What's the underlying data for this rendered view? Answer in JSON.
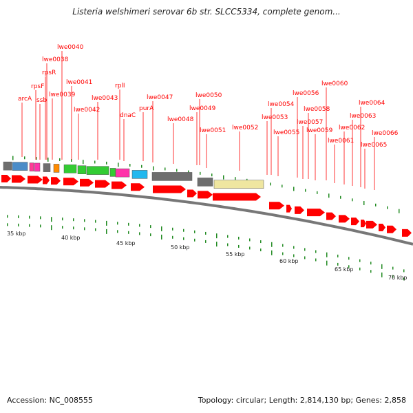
{
  "title": "Listeria welshimeri serovar 6b str. SLCC5334, complete genom...",
  "footer": {
    "accession": "Accession: NC_008555",
    "topology": "Topology: circular; Length: 2,814,130 bp; Genes: 2,858"
  },
  "colors": {
    "cds": "#ff0000",
    "label": "#ff0000",
    "tick": "#228b22",
    "gray": "#6e6e6e",
    "light_blue": "#4a8cc8",
    "pink": "#ff3c96",
    "orange": "#ff8c00",
    "green": "#33cc33",
    "magenta": "#ff33aa",
    "cyan": "#22b8ee",
    "khaki": "#efe6a0"
  },
  "gene_labels": [
    "arcA",
    "rpsF",
    "ssb",
    "rpsR",
    "lwe0038",
    "lwe0040",
    "lwe0039",
    "lwe0041",
    "lwe0042",
    "lwe0043",
    "rplI",
    "dnaC",
    "purA",
    "lwe0047",
    "lwe0048",
    "lwe0050",
    "lwe0049",
    "lwe0051",
    "lwe0052",
    "lwe0054",
    "lwe0053",
    "lwe0055",
    "lwe0056",
    "lwe0057",
    "lwe0058",
    "lwe0059",
    "lwe0060",
    "lwe0061",
    "lwe0062",
    "lwe0063",
    "lwe0064",
    "lwe0065",
    "lwe0066"
  ],
  "kbp_ticks": [
    "35 kbp",
    "40 kbp",
    "45 kbp",
    "50 kbp",
    "55 kbp",
    "60 kbp",
    "65 kbp",
    "70 kbp"
  ]
}
